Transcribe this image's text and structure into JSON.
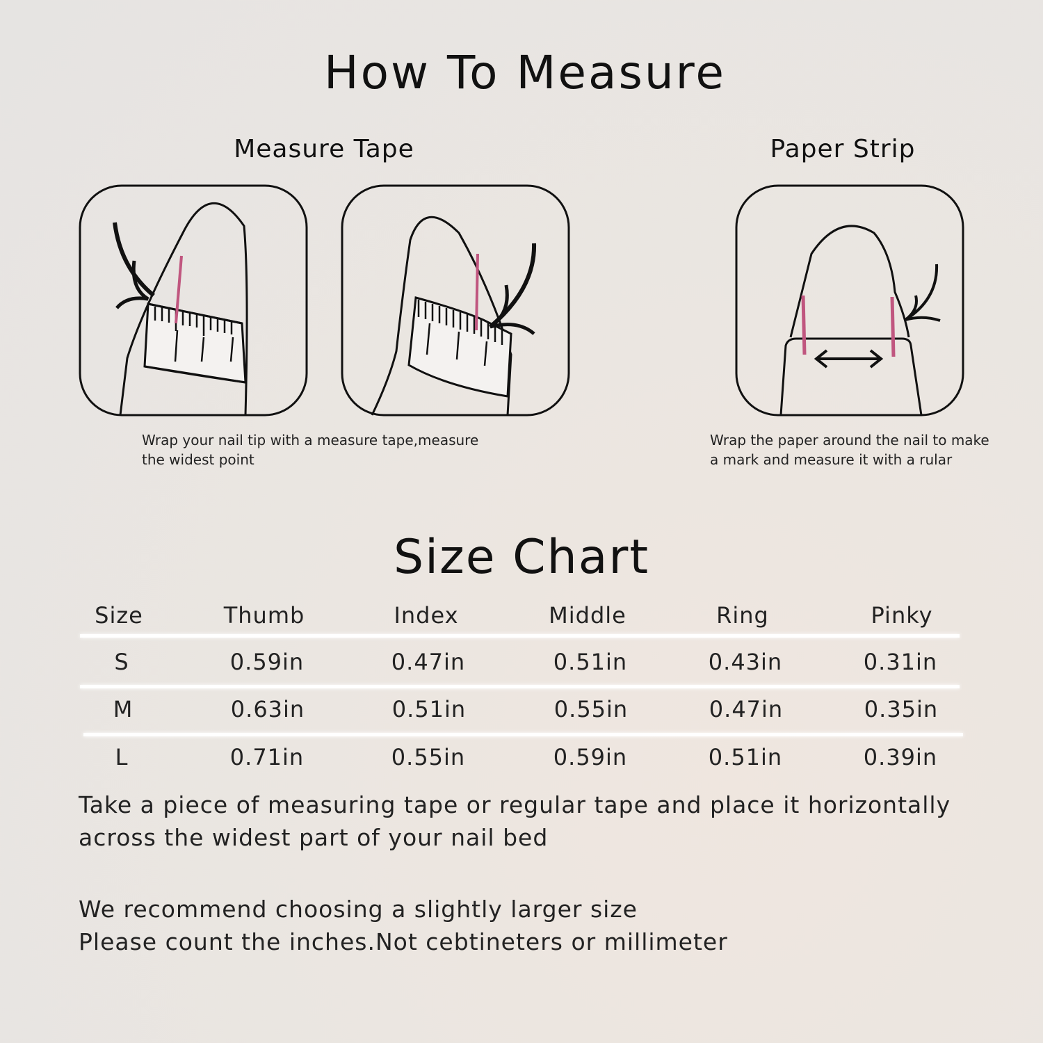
{
  "title": "How To Measure",
  "methods": [
    {
      "heading": "Measure Tape",
      "caption_line1": "Wrap your nail tip with a measure tape,measure",
      "caption_line2": "the widest point"
    },
    {
      "heading": "Paper Strip",
      "caption_line1": "Wrap the paper around the nail to make",
      "caption_line2": "a mark and measure it with a rular"
    }
  ],
  "size_chart": {
    "title": "Size Chart",
    "headers": [
      "Size",
      "Thumb",
      "Index",
      "Middle",
      "Ring",
      "Pinky"
    ],
    "rows": [
      [
        "S",
        "0.59in",
        "0.47in",
        "0.51in",
        "0.43in",
        "0.31in"
      ],
      [
        "M",
        "0.63in",
        "0.51in",
        "0.55in",
        "0.47in",
        "0.35in"
      ],
      [
        "L",
        "0.71in",
        "0.55in",
        "0.59in",
        "0.51in",
        "0.39in"
      ]
    ]
  },
  "notes": [
    "Take a piece of measuring tape or regular tape and place it horizontally",
    "across the widest part of your nail bed",
    "We recommend choosing a slightly larger size",
    "Please count the inches.Not cebtineters or millimeter"
  ],
  "colors": {
    "mark": "#c0567f",
    "line": "#111111"
  }
}
